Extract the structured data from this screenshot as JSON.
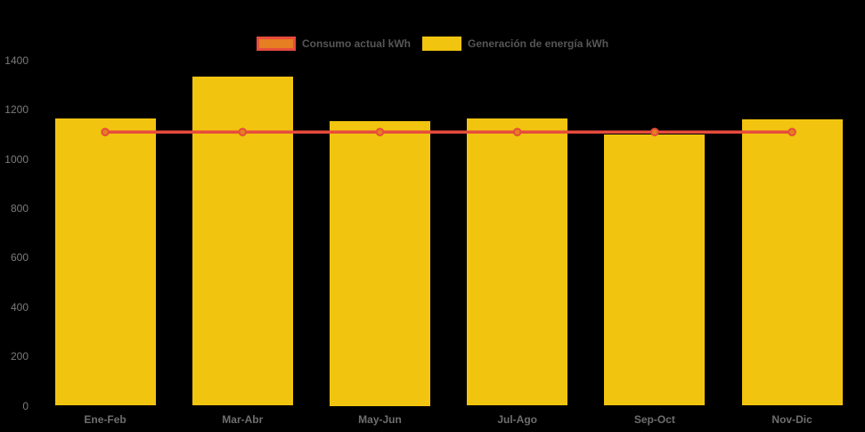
{
  "chart_data": {
    "type": "bar",
    "title": "",
    "xlabel": "",
    "ylabel": "",
    "categories": [
      "Ene-Feb",
      "Mar-Abr",
      "May-Jun",
      "Jul-Ago",
      "Sep-Oct",
      "Nov-Dic"
    ],
    "series": [
      {
        "name": "Consumo actual kWh",
        "type": "line",
        "values": [
          1110,
          1110,
          1110,
          1110,
          1110,
          1110
        ],
        "line_color": "#e74c3c",
        "point_fill_color": "#e67e22"
      },
      {
        "name": "Generación de energía kWh",
        "type": "bar",
        "values": [
          1165,
          1335,
          1155,
          1165,
          1100,
          1160
        ],
        "bar_color": "#f1c40f"
      }
    ],
    "ylim": [
      0,
      1400
    ],
    "yticks": [
      0,
      200,
      400,
      600,
      800,
      1000,
      1200,
      1400
    ],
    "grid": false,
    "legend_position": "top",
    "background_color": "#000000",
    "tick_label_color": "#7a7a7a",
    "legend_text_color": "#565656"
  }
}
